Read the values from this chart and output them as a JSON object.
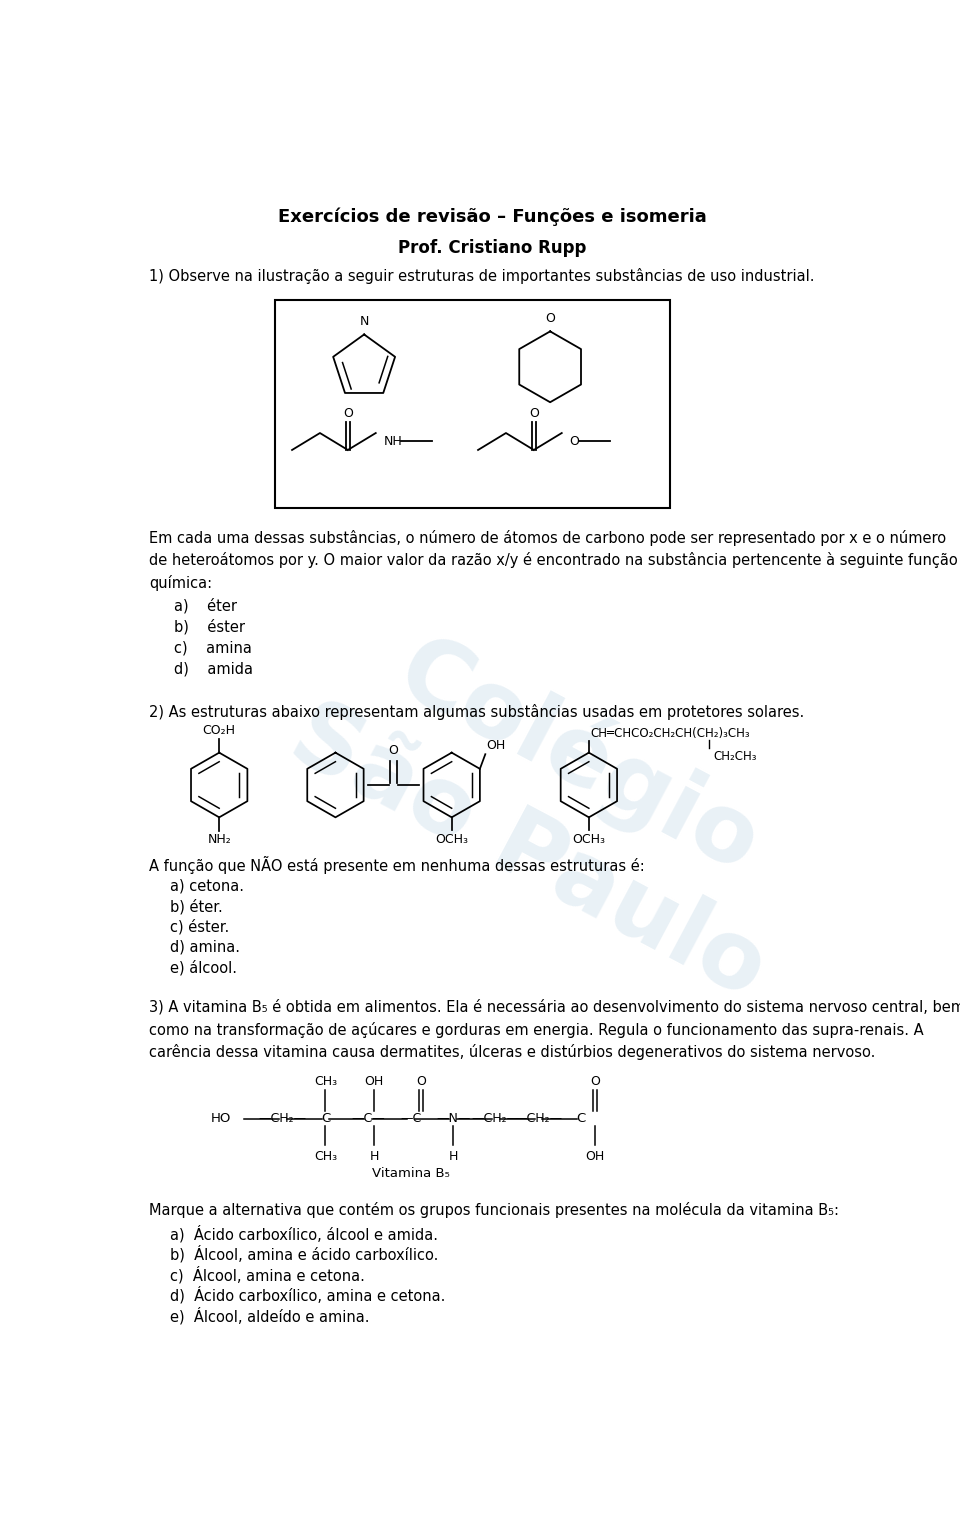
{
  "title": "Exercícios de revisão – Funções e isomeria",
  "subtitle": "Prof. Cristiano Rupp",
  "background": "#ffffff",
  "watermark_color": "#b0cce0",
  "page_width": 9.6,
  "page_height": 15.27,
  "q1_text": "1) Observe na ilustração a seguir estruturas de importantes substâncias de uso industrial.",
  "q1_body1": "Em cada uma dessas substâncias, o número de átomos de carbono pode ser representado por x e o número",
  "q1_body2": "de heteroátomos por y. O maior valor da razão x/y é encontrado na substância pertencente à seguinte função",
  "q1_body3": "química:",
  "q1_a": "a)    éter",
  "q1_b": "b)    éster",
  "q1_c": "c)    amina",
  "q1_d": "d)    amida",
  "q2_text": "2) As estruturas abaixo representam algumas substâncias usadas em protetores solares.",
  "q2_body": "A função que NÃO está presente em nenhuma dessas estruturas é:",
  "q2_a": "a) cetona.",
  "q2_b": "b) éter.",
  "q2_c": "c) éster.",
  "q2_d": "d) amina.",
  "q2_e": "e) álcool.",
  "q3_line1": "3) A vitamina B₅ é obtida em alimentos. Ela é necessária ao desenvolvimento do sistema nervoso central, bem",
  "q3_line2": "como na transformação de açúcares e gorduras em energia. Regula o funcionamento das supra-renais. A",
  "q3_line3": "carência dessa vitamina causa dermatites, úlceras e distúrbios degenerativos do sistema nervoso.",
  "q3_body": "Marque a alternativa que contém os grupos funcionais presentes na molécula da vitamina B₅:",
  "q3_a": "a)  Ácido carboxílico, álcool e amida.",
  "q3_b": "b)  Álcool, amina e ácido carboxílico.",
  "q3_c": "c)  Álcool, amina e cetona.",
  "q3_d": "d)  Ácido carboxílico, amina e cetona.",
  "q3_e": "e)  Álcool, aldeído e amina."
}
